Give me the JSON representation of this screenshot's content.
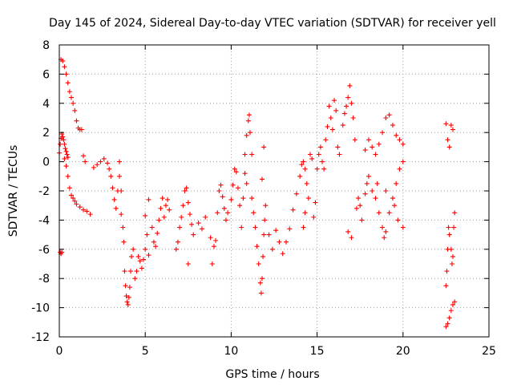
{
  "chart_data": {
    "type": "scatter",
    "title": "Day 145 of 2024, Sidereal Day-to-day VTEC variation (SDTVAR) for receiver yell",
    "xlabel": "GPS time / hours",
    "ylabel": "SDTVAR / TECUs",
    "xlim": [
      0,
      25
    ],
    "ylim": [
      -12,
      8
    ],
    "xticks": [
      0,
      5,
      10,
      15,
      20,
      25
    ],
    "yticks": [
      -12,
      -10,
      -8,
      -6,
      -4,
      -2,
      0,
      2,
      4,
      6,
      8
    ],
    "grid": true,
    "marker": "+",
    "color": "#ff0000",
    "series": [
      {
        "name": "SDTVAR",
        "points": [
          [
            0.05,
            -6.2
          ],
          [
            0.1,
            -6.3
          ],
          [
            0.15,
            -6.2
          ],
          [
            0.0,
            0.6
          ],
          [
            0.05,
            1.2
          ],
          [
            0.1,
            1.6
          ],
          [
            0.15,
            1.9
          ],
          [
            0.2,
            1.7
          ],
          [
            0.25,
            1.5
          ],
          [
            0.3,
            1.2
          ],
          [
            0.35,
            0.9
          ],
          [
            0.4,
            0.7
          ],
          [
            0.45,
            0.5
          ],
          [
            0.5,
            0.3
          ],
          [
            0.1,
            7.0
          ],
          [
            0.2,
            6.9
          ],
          [
            0.3,
            6.5
          ],
          [
            0.4,
            6.0
          ],
          [
            0.5,
            5.4
          ],
          [
            0.6,
            4.8
          ],
          [
            0.7,
            4.4
          ],
          [
            0.8,
            4.0
          ],
          [
            0.9,
            3.5
          ],
          [
            1.0,
            2.8
          ],
          [
            1.1,
            2.3
          ],
          [
            1.2,
            2.2
          ],
          [
            1.3,
            2.2
          ],
          [
            0.3,
            0.2
          ],
          [
            0.4,
            -0.3
          ],
          [
            0.5,
            -1.0
          ],
          [
            0.6,
            -1.8
          ],
          [
            0.7,
            -2.3
          ],
          [
            0.8,
            -2.5
          ],
          [
            0.9,
            -2.7
          ],
          [
            1.0,
            -2.9
          ],
          [
            1.2,
            -3.1
          ],
          [
            1.4,
            -3.3
          ],
          [
            1.6,
            -3.4
          ],
          [
            1.8,
            -3.6
          ],
          [
            1.4,
            0.4
          ],
          [
            1.5,
            0.0
          ],
          [
            2.0,
            -0.4
          ],
          [
            2.2,
            -0.2
          ],
          [
            2.4,
            0.0
          ],
          [
            2.6,
            0.2
          ],
          [
            2.8,
            -0.1
          ],
          [
            2.9,
            -0.5
          ],
          [
            3.0,
            -1.0
          ],
          [
            3.1,
            -1.8
          ],
          [
            3.2,
            -2.6
          ],
          [
            3.3,
            -3.2
          ],
          [
            3.4,
            -2.0
          ],
          [
            3.5,
            -1.0
          ],
          [
            3.5,
            0.0
          ],
          [
            3.6,
            -2.0
          ],
          [
            3.6,
            -3.6
          ],
          [
            3.7,
            -4.5
          ],
          [
            3.75,
            -5.5
          ],
          [
            3.8,
            -7.5
          ],
          [
            3.85,
            -8.5
          ],
          [
            3.9,
            -9.2
          ],
          [
            3.95,
            -9.6
          ],
          [
            4.0,
            -9.8
          ],
          [
            4.05,
            -9.3
          ],
          [
            4.1,
            -8.6
          ],
          [
            4.15,
            -7.5
          ],
          [
            4.2,
            -6.5
          ],
          [
            4.3,
            -6.0
          ],
          [
            4.4,
            -8.0
          ],
          [
            4.5,
            -7.5
          ],
          [
            4.6,
            -6.5
          ],
          [
            4.7,
            -6.8
          ],
          [
            4.8,
            -7.3
          ],
          [
            4.9,
            -6.7
          ],
          [
            5.0,
            -6.0
          ],
          [
            5.1,
            -5.0
          ],
          [
            5.2,
            -6.4
          ],
          [
            5.4,
            -4.5
          ],
          [
            5.5,
            -5.5
          ],
          [
            5.6,
            -5.8
          ],
          [
            5.7,
            -4.9
          ],
          [
            5.8,
            -4.0
          ],
          [
            5.9,
            -3.2
          ],
          [
            6.0,
            -2.5
          ],
          [
            6.1,
            -3.8
          ],
          [
            6.2,
            -3.0
          ],
          [
            6.3,
            -2.6
          ],
          [
            6.4,
            -3.3
          ],
          [
            5.0,
            -3.7
          ],
          [
            5.2,
            -2.6
          ],
          [
            6.8,
            -6.0
          ],
          [
            6.9,
            -5.5
          ],
          [
            7.0,
            -4.5
          ],
          [
            7.1,
            -3.8
          ],
          [
            7.2,
            -3.0
          ],
          [
            7.3,
            -2.0
          ],
          [
            7.4,
            -1.8
          ],
          [
            7.5,
            -2.8
          ],
          [
            7.6,
            -3.6
          ],
          [
            7.7,
            -4.3
          ],
          [
            7.8,
            -5.0
          ],
          [
            7.5,
            -7.0
          ],
          [
            8.1,
            -4.2
          ],
          [
            8.3,
            -4.6
          ],
          [
            8.5,
            -3.8
          ],
          [
            8.8,
            -5.2
          ],
          [
            9.0,
            -5.8
          ],
          [
            8.9,
            -7.0
          ],
          [
            9.1,
            -5.4
          ],
          [
            9.2,
            -3.5
          ],
          [
            9.3,
            -2.0
          ],
          [
            9.4,
            -1.6
          ],
          [
            9.5,
            -2.4
          ],
          [
            9.6,
            -3.2
          ],
          [
            9.7,
            -4.0
          ],
          [
            9.8,
            -3.5
          ],
          [
            10.0,
            -2.6
          ],
          [
            10.1,
            -1.6
          ],
          [
            10.2,
            -0.5
          ],
          [
            10.3,
            -0.7
          ],
          [
            10.4,
            -1.8
          ],
          [
            10.5,
            -3.0
          ],
          [
            10.6,
            -4.5
          ],
          [
            10.7,
            -2.5
          ],
          [
            10.8,
            -0.8
          ],
          [
            10.9,
            -1.5
          ],
          [
            10.8,
            0.5
          ],
          [
            10.9,
            1.8
          ],
          [
            11.0,
            2.8
          ],
          [
            11.05,
            3.2
          ],
          [
            11.1,
            2.0
          ],
          [
            11.2,
            0.5
          ],
          [
            11.2,
            -2.5
          ],
          [
            11.3,
            -3.5
          ],
          [
            11.4,
            -4.5
          ],
          [
            11.5,
            -5.8
          ],
          [
            11.6,
            -7.0
          ],
          [
            11.7,
            -8.3
          ],
          [
            11.75,
            -9.0
          ],
          [
            11.8,
            -8.0
          ],
          [
            11.85,
            -6.5
          ],
          [
            11.9,
            -5.0
          ],
          [
            11.95,
            -4.0
          ],
          [
            12.0,
            -3.0
          ],
          [
            11.8,
            -1.2
          ],
          [
            11.9,
            1.0
          ],
          [
            12.2,
            -5.0
          ],
          [
            12.4,
            -6.0
          ],
          [
            12.6,
            -4.7
          ],
          [
            12.8,
            -5.5
          ],
          [
            13.0,
            -6.3
          ],
          [
            13.2,
            -5.5
          ],
          [
            13.4,
            -4.6
          ],
          [
            13.6,
            -3.3
          ],
          [
            13.8,
            -2.2
          ],
          [
            14.0,
            -1.0
          ],
          [
            14.1,
            -0.2
          ],
          [
            14.2,
            0.0
          ],
          [
            14.3,
            -0.5
          ],
          [
            14.4,
            -1.5
          ],
          [
            14.5,
            -2.5
          ],
          [
            14.3,
            -3.5
          ],
          [
            14.2,
            -4.5
          ],
          [
            14.6,
            0.5
          ],
          [
            14.7,
            0.2
          ],
          [
            14.8,
            -3.8
          ],
          [
            14.9,
            -2.8
          ],
          [
            15.0,
            -0.5
          ],
          [
            15.1,
            0.5
          ],
          [
            15.2,
            1.0
          ],
          [
            15.3,
            0.0
          ],
          [
            15.4,
            -0.5
          ],
          [
            15.5,
            1.5
          ],
          [
            15.6,
            2.4
          ],
          [
            15.7,
            3.8
          ],
          [
            15.8,
            3.0
          ],
          [
            15.9,
            2.2
          ],
          [
            16.0,
            4.2
          ],
          [
            16.1,
            3.5
          ],
          [
            16.2,
            1.0
          ],
          [
            16.3,
            0.5
          ],
          [
            16.5,
            2.5
          ],
          [
            16.6,
            3.3
          ],
          [
            16.7,
            3.8
          ],
          [
            16.8,
            4.4
          ],
          [
            16.9,
            5.2
          ],
          [
            17.0,
            4.0
          ],
          [
            17.1,
            3.0
          ],
          [
            17.2,
            1.5
          ],
          [
            17.0,
            -5.2
          ],
          [
            16.8,
            -4.8
          ],
          [
            17.3,
            -3.2
          ],
          [
            17.4,
            -2.5
          ],
          [
            17.5,
            -3.0
          ],
          [
            17.6,
            -4.0
          ],
          [
            17.8,
            -2.2
          ],
          [
            17.9,
            -1.5
          ],
          [
            18.0,
            -1.0
          ],
          [
            18.2,
            -2.0
          ],
          [
            18.4,
            -2.5
          ],
          [
            18.6,
            -3.5
          ],
          [
            18.8,
            -4.5
          ],
          [
            18.9,
            -5.2
          ],
          [
            19.0,
            -4.8
          ],
          [
            19.2,
            -3.5
          ],
          [
            19.4,
            -2.5
          ],
          [
            19.6,
            -1.5
          ],
          [
            19.8,
            -0.5
          ],
          [
            20.0,
            0.0
          ],
          [
            17.8,
            0.8
          ],
          [
            18.0,
            1.5
          ],
          [
            18.2,
            1.0
          ],
          [
            18.4,
            0.5
          ],
          [
            18.6,
            1.2
          ],
          [
            18.8,
            2.0
          ],
          [
            19.0,
            3.0
          ],
          [
            19.2,
            3.2
          ],
          [
            19.4,
            2.5
          ],
          [
            19.6,
            1.8
          ],
          [
            19.8,
            1.5
          ],
          [
            20.0,
            1.2
          ],
          [
            18.5,
            -1.5
          ],
          [
            19.0,
            -2.0
          ],
          [
            19.5,
            -3.0
          ],
          [
            19.7,
            -4.0
          ],
          [
            20.0,
            -4.5
          ],
          [
            22.5,
            2.6
          ],
          [
            22.6,
            1.5
          ],
          [
            22.7,
            1.0
          ],
          [
            22.8,
            2.5
          ],
          [
            22.9,
            2.2
          ],
          [
            22.5,
            -8.5
          ],
          [
            22.55,
            -7.5
          ],
          [
            22.6,
            -6.0
          ],
          [
            22.65,
            -4.5
          ],
          [
            22.7,
            -5.0
          ],
          [
            22.8,
            -6.0
          ],
          [
            22.85,
            -7.0
          ],
          [
            22.9,
            -6.5
          ],
          [
            22.95,
            -4.5
          ],
          [
            23.0,
            -3.5
          ],
          [
            22.5,
            -11.3
          ],
          [
            22.6,
            -11.1
          ],
          [
            22.7,
            -10.7
          ],
          [
            22.8,
            -10.2
          ],
          [
            22.9,
            -9.8
          ],
          [
            23.0,
            -9.6
          ]
        ]
      }
    ]
  }
}
